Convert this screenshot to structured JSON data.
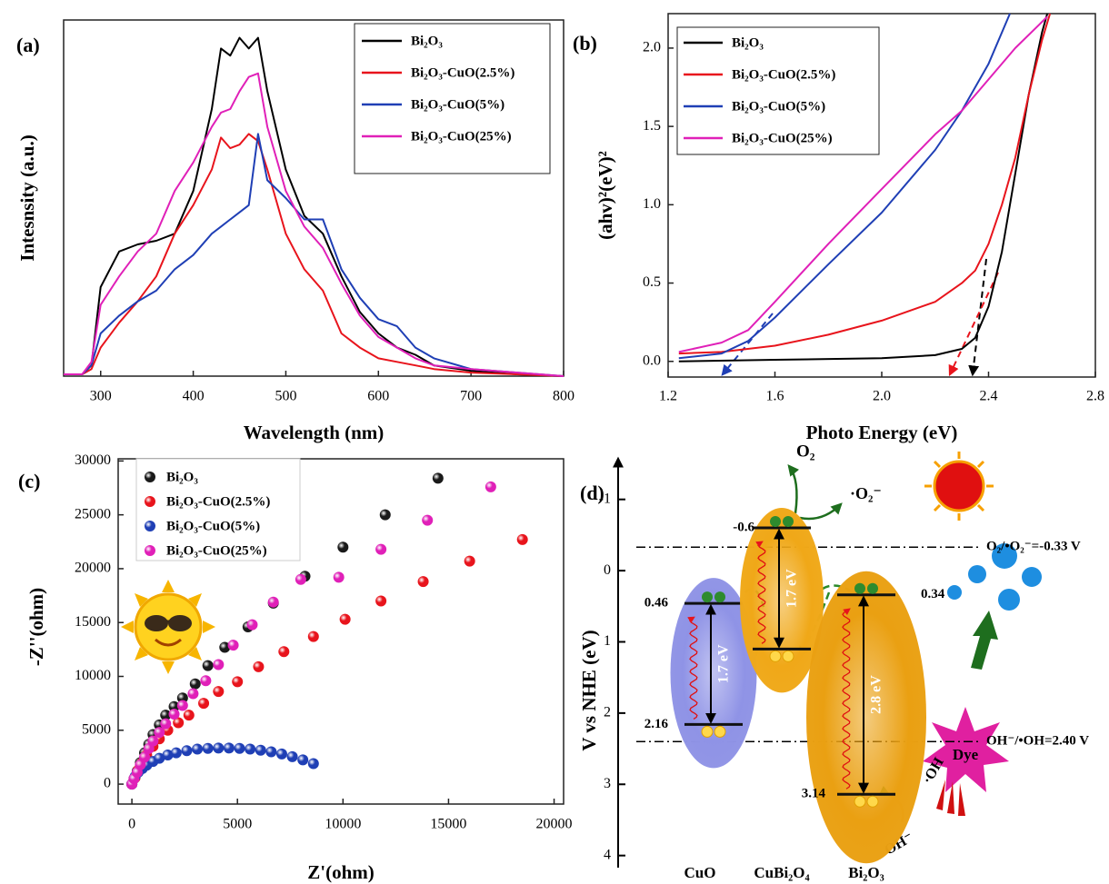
{
  "chart_data": [
    {
      "type": "line",
      "panel_label": "(a)",
      "x_label": "Wavelength (nm)",
      "y_label": "Intesnsity (a.u.)",
      "xlim": [
        260,
        800
      ],
      "ylim": [
        0,
        100
      ],
      "xticks": [
        300,
        400,
        500,
        600,
        700,
        800
      ],
      "x": [
        260,
        280,
        290,
        300,
        320,
        340,
        360,
        380,
        400,
        420,
        430,
        440,
        450,
        460,
        470,
        480,
        500,
        520,
        540,
        560,
        580,
        600,
        620,
        640,
        660,
        700,
        750,
        800
      ],
      "series": [
        {
          "name": "Bi₂O₃",
          "color": "#000000",
          "values": [
            0.5,
            0.5,
            3,
            25,
            35,
            37,
            38,
            40,
            52,
            75,
            92,
            90,
            95,
            92,
            95,
            80,
            58,
            45,
            40,
            28,
            18,
            12,
            8,
            6,
            3,
            1.5,
            0.5,
            0
          ]
        },
        {
          "name": "Bi₂O₃-CuO(2.5%)",
          "color": "#e8141c",
          "values": [
            0.5,
            0.5,
            2,
            8,
            15,
            21,
            28,
            40,
            48,
            58,
            67,
            64,
            65,
            68,
            66,
            58,
            40,
            30,
            24,
            12,
            8,
            5,
            4,
            3,
            2,
            1,
            0.5,
            0
          ]
        },
        {
          "name": "Bi₂O₃-CuO(5%)",
          "color": "#1f3fb5",
          "values": [
            0.5,
            0.5,
            3,
            12,
            17,
            21,
            24,
            30,
            34,
            40,
            42,
            44,
            46,
            48,
            68,
            55,
            50,
            44,
            44,
            30,
            22,
            16,
            14,
            8,
            5,
            2,
            1,
            0
          ]
        },
        {
          "name": "Bi₂O₃-CuO(25%)",
          "color": "#e020b8",
          "values": [
            0.5,
            0.5,
            4,
            20,
            28,
            35,
            40,
            52,
            60,
            70,
            74,
            75,
            80,
            84,
            85,
            70,
            52,
            42,
            36,
            26,
            17,
            11,
            8,
            5,
            3,
            2,
            1,
            0
          ]
        }
      ]
    },
    {
      "type": "line",
      "panel_label": "(b)",
      "x_label": "Photo Energy (eV)",
      "y_label": "(ahv)²(eV)²",
      "xlim": [
        1.2,
        2.8
      ],
      "ylim": [
        -0.1,
        2.22
      ],
      "xticks": [
        1.2,
        1.6,
        {
          "value": 2,
          "label": "2.0"
        },
        2.4,
        2.8
      ],
      "yticks": [
        {
          "value": 0,
          "label": "0.0"
        },
        0.5,
        {
          "value": 1,
          "label": "1.0"
        },
        1.5,
        {
          "value": 2,
          "label": "2.0"
        }
      ],
      "series": [
        {
          "name": "Bi₂O₃",
          "color": "#000000",
          "x": [
            1.24,
            1.6,
            2.0,
            2.2,
            2.3,
            2.35,
            2.4,
            2.45,
            2.5,
            2.55,
            2.6,
            2.62
          ],
          "values": [
            0.0,
            0.01,
            0.02,
            0.04,
            0.08,
            0.15,
            0.35,
            0.7,
            1.2,
            1.7,
            2.1,
            2.22
          ]
        },
        {
          "name": "Bi₂O₃-CuO(2.5%)",
          "color": "#e8141c",
          "x": [
            1.24,
            1.4,
            1.6,
            1.8,
            2.0,
            2.2,
            2.3,
            2.35,
            2.4,
            2.45,
            2.5,
            2.55,
            2.6,
            2.63
          ],
          "values": [
            0.05,
            0.06,
            0.1,
            0.17,
            0.26,
            0.38,
            0.5,
            0.58,
            0.75,
            1.0,
            1.3,
            1.7,
            2.05,
            2.22
          ]
        },
        {
          "name": "Bi₂O₃-CuO(5%)",
          "color": "#1f3fb5",
          "x": [
            1.24,
            1.4,
            1.5,
            1.6,
            1.8,
            2.0,
            2.2,
            2.3,
            2.4,
            2.48
          ],
          "values": [
            0.02,
            0.05,
            0.13,
            0.28,
            0.62,
            0.95,
            1.35,
            1.6,
            1.9,
            2.22
          ]
        },
        {
          "name": "Bi₂O₃-CuO(25%)",
          "color": "#e020b8",
          "x": [
            1.24,
            1.4,
            1.5,
            1.6,
            1.8,
            2.0,
            2.2,
            2.3,
            2.4,
            2.5,
            2.62
          ],
          "values": [
            0.06,
            0.12,
            0.2,
            0.38,
            0.75,
            1.1,
            1.45,
            1.6,
            1.8,
            2.0,
            2.2
          ]
        }
      ]
    },
    {
      "type": "scatter",
      "panel_label": "(c)",
      "x_label": "Z'(ohm)",
      "y_label": "-Z''(ohm)",
      "xlim": [
        -650,
        20450
      ],
      "ylim": [
        -1850,
        30200
      ],
      "xticks": [
        0,
        5000,
        10000,
        15000,
        20000
      ],
      "yticks": [
        0,
        5000,
        10000,
        15000,
        20000,
        25000,
        30000
      ],
      "series": [
        {
          "name": "Bi₂O₃",
          "color": "#1a1a1a",
          "x": [
            0,
            100,
            250,
            400,
            600,
            800,
            1000,
            1300,
            1600,
            2000,
            2400,
            3000,
            3600,
            4400,
            5500,
            6700,
            8200,
            10000,
            12000,
            14500
          ],
          "values": [
            0,
            500,
            1200,
            2000,
            2900,
            3700,
            4600,
            5500,
            6400,
            7200,
            8000,
            9300,
            11000,
            12700,
            14600,
            16800,
            19300,
            22000,
            25000,
            28400
          ]
        },
        {
          "name": "Bi₂O₃-CuO(2.5%)",
          "color": "#e8141c",
          "x": [
            0,
            150,
            300,
            500,
            700,
            1000,
            1300,
            1700,
            2200,
            2700,
            3400,
            4100,
            5000,
            6000,
            7200,
            8600,
            10100,
            11800,
            13800,
            16000,
            18500
          ],
          "values": [
            0,
            600,
            1300,
            2000,
            2700,
            3500,
            4200,
            5000,
            5700,
            6400,
            7500,
            8600,
            9500,
            10900,
            12300,
            13700,
            15300,
            17000,
            18800,
            20700,
            22700
          ]
        },
        {
          "name": "Bi₂O₃-CuO(5%)",
          "color": "#1f3fb5",
          "x": [
            0,
            150,
            300,
            500,
            700,
            1000,
            1300,
            1700,
            2100,
            2600,
            3100,
            3600,
            4100,
            4600,
            5100,
            5600,
            6100,
            6600,
            7100,
            7600,
            8100,
            8600
          ],
          "values": [
            0,
            700,
            1100,
            1450,
            1750,
            2100,
            2400,
            2700,
            2900,
            3100,
            3250,
            3320,
            3350,
            3350,
            3320,
            3250,
            3150,
            3000,
            2800,
            2550,
            2250,
            1900
          ]
        },
        {
          "name": "Bi₂O₃-CuO(25%)",
          "color": "#e020b8",
          "x": [
            0,
            100,
            250,
            400,
            600,
            800,
            1000,
            1300,
            1600,
            2000,
            2400,
            2900,
            3500,
            4100,
            4800,
            5700,
            6700,
            8000,
            9800,
            11800,
            14000,
            17000
          ],
          "values": [
            0,
            500,
            1100,
            1800,
            2500,
            3300,
            4000,
            4800,
            5600,
            6500,
            7300,
            8400,
            9600,
            11100,
            12900,
            14800,
            16900,
            19000,
            19200,
            21800,
            24500,
            27600
          ]
        }
      ]
    },
    {
      "type": "band",
      "panel_label": "(d)",
      "y_label": "V vs NHE (eV)",
      "ylim": [
        -1.57,
        4.17
      ],
      "yticks": [
        -1,
        0,
        1,
        2,
        3,
        4
      ],
      "bands": [
        {
          "name": "CuO",
          "cb": 0.46,
          "vb": 2.16,
          "gap": "1.7 eV",
          "color": "#8f93e6"
        },
        {
          "name": "CuBi₂O₄",
          "cb": -0.6,
          "vb": 1.1,
          "gap": "1.7 eV",
          "color": "#f0a818"
        },
        {
          "name": "Bi₂O₃",
          "cb": 0.34,
          "vb": 3.14,
          "gap": "2.8 eV",
          "color": "#eaa012"
        }
      ],
      "potentials": [
        {
          "value": -0.33,
          "label": "O₂/•O₂⁻=-0.33 V"
        },
        {
          "value": 2.4,
          "label": "OH⁻/•OH=2.40 V"
        }
      ],
      "annotations": [
        "O₂",
        "·O₂⁻",
        "Dye",
        "·OH",
        "OH⁻"
      ]
    }
  ]
}
